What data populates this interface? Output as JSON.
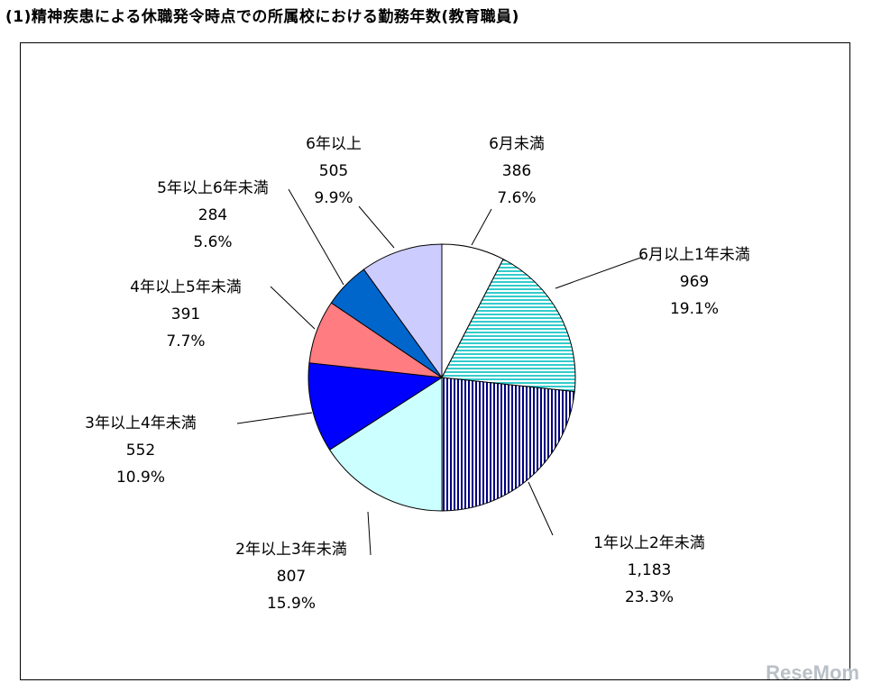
{
  "title": "(1)精神疾患による休職発令時点での所属校における勤務年数(教育職員)",
  "watermark": "ReseMom",
  "chart_data": {
    "type": "pie",
    "start_angle": "12 o'clock",
    "direction": "clockwise",
    "slices": [
      {
        "name": "6月未満",
        "value": 386,
        "value_label": "386",
        "percent": "7.6%",
        "color": "#ffffff",
        "pattern": "none"
      },
      {
        "name": "6月以上1年未満",
        "value": 969,
        "value_label": "969",
        "percent": "19.1%",
        "color": "#33cccc",
        "pattern": "horizontal-stripes"
      },
      {
        "name": "1年以上2年未満",
        "value": 1183,
        "value_label": "1,183",
        "percent": "23.3%",
        "color": "#000080",
        "pattern": "vertical-stripes"
      },
      {
        "name": "2年以上3年未満",
        "value": 807,
        "value_label": "807",
        "percent": "15.9%",
        "color": "#ccffff",
        "pattern": "none"
      },
      {
        "name": "3年以上4年未満",
        "value": 552,
        "value_label": "552",
        "percent": "10.9%",
        "color": "#0000ff",
        "pattern": "none"
      },
      {
        "name": "4年以上5年未満",
        "value": 391,
        "value_label": "391",
        "percent": "7.7%",
        "color": "#ff7c80",
        "pattern": "none"
      },
      {
        "name": "5年以上6年未満",
        "value": 284,
        "value_label": "284",
        "percent": "5.6%",
        "color": "#0066cc",
        "pattern": "none"
      },
      {
        "name": "6年以上",
        "value": 505,
        "value_label": "505",
        "percent": "9.9%",
        "color": "#ccccff",
        "pattern": "none"
      }
    ]
  }
}
